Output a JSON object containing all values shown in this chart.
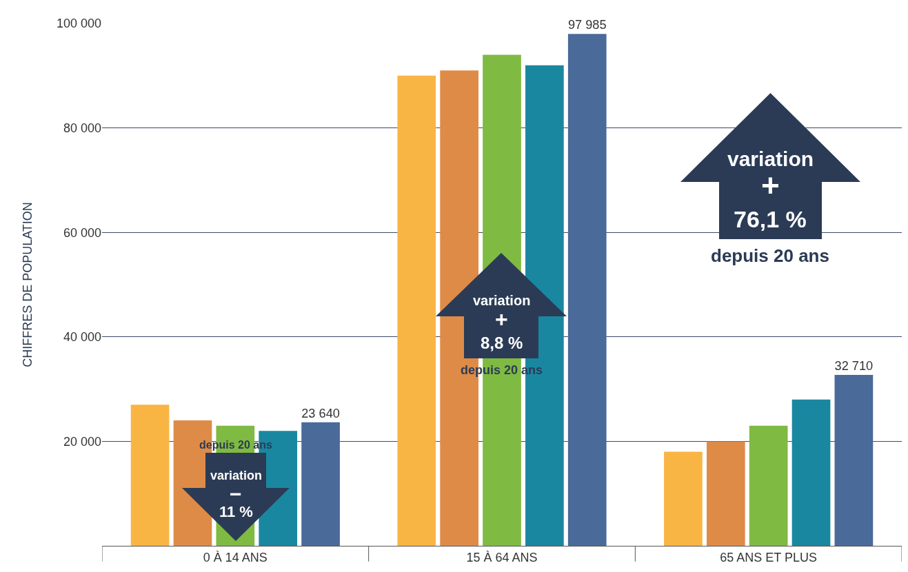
{
  "chart_data": {
    "type": "bar",
    "ylabel": "CHIFFRES DE POPULATION",
    "categories": [
      "0 À 14 ANS",
      "15 À 64 ANS",
      "65 ANS ET PLUS"
    ],
    "series": [
      {
        "color": "#f9b544",
        "values": [
          27000,
          90000,
          18000
        ]
      },
      {
        "color": "#de8b47",
        "values": [
          24000,
          91000,
          20000
        ]
      },
      {
        "color": "#7fba42",
        "values": [
          23000,
          94000,
          23000
        ]
      },
      {
        "color": "#1a87a0",
        "values": [
          22000,
          92000,
          28000
        ]
      },
      {
        "color": "#4a6a99",
        "values": [
          23640,
          97985,
          32710
        ],
        "value_labels": [
          "23 640",
          "97 985",
          "32 710"
        ]
      }
    ],
    "ylim": [
      0,
      100000
    ],
    "yticks": [
      {
        "value": 20000,
        "label": "20 000"
      },
      {
        "value": 40000,
        "label": "40 000"
      },
      {
        "value": 60000,
        "label": "60 000"
      },
      {
        "value": 80000,
        "label": "80 000"
      },
      {
        "value": 100000,
        "label": "100 000"
      }
    ],
    "grid": "y",
    "annotations": [
      "depuis 20 ans",
      "variation",
      "−",
      "11 %",
      "variation",
      "+",
      "8,8 %",
      "depuis 20 ans",
      "variation",
      "+",
      "76,1 %",
      "depuis 20 ans"
    ]
  }
}
